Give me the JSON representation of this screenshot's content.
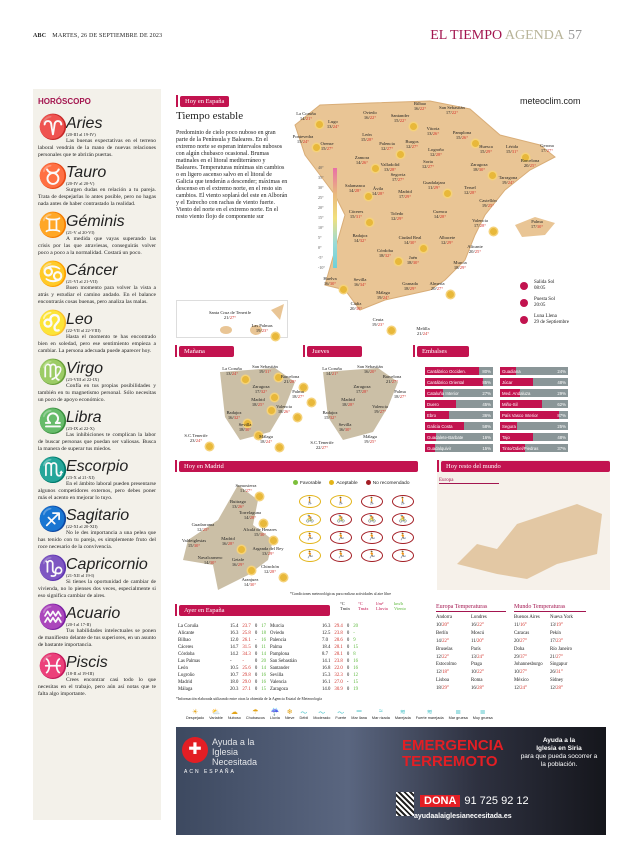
{
  "header": {
    "paper": "ABC",
    "date": "MARTES, 26 DE SEPTIEMBRE DE 2023",
    "section": "EL TIEMPO",
    "subsection": "AGENDA",
    "page": "57"
  },
  "horoscope": {
    "title": "HORÓSCOPO",
    "signs": [
      {
        "name": "Aries",
        "icon": "♈",
        "dates": "(20-III al 19-IV)",
        "text": "Las buenas expectativas en el terreno laboral vendrán de la mano de nuevas relaciones personales que te abrirán puertas."
      },
      {
        "name": "Tauro",
        "icon": "♉",
        "dates": "(20-IV al 20-V)",
        "text": "Surgen dudas en relación a tu pareja. Trata de despejarlas lo antes posible, pero no hagas nada antes de haber contrastado la realidad."
      },
      {
        "name": "Géminis",
        "icon": "♊",
        "dates": "(21-V al 20-VI)",
        "text": "A medida que vayas superando las crisis por las que atraviesas, conseguirás volver poco a poco a la normalidad. Costará un poco."
      },
      {
        "name": "Cáncer",
        "icon": "♋",
        "dates": "(21-VI al 21-VII)",
        "text": "Buen momento para volver la vista a atrás y estudiar el camino andado. En el balance encontrarás cosas buenas, pero analiza las malas."
      },
      {
        "name": "Leo",
        "icon": "♌",
        "dates": "(22-VII al 22-VIII)",
        "text": "Hasta el momento te has encontrado bien en soledad, pero ese sentimiento empieza a cambiar. La persona adecuada puede aparecer hoy."
      },
      {
        "name": "Virgo",
        "icon": "♍",
        "dates": "(23-VIII al 22-IX)",
        "text": "Confía en tus propias posibilidades y también en tu magnetismo personal. Sólo necesitas un poco de apoyo económico."
      },
      {
        "name": "Libra",
        "icon": "♎",
        "dates": "(23-IX al 22-X)",
        "text": "Las inhibiciones te complican la labor de buscar personas que puedan ser valiosas. Busca la manera de superar tus miedos."
      },
      {
        "name": "Escorpio",
        "icon": "♏",
        "dates": "(23-X al 21-XI)",
        "text": "En el ámbito laboral pueden presentarse algunos competidores externos, pero debes poner más el acento en mejorar lo tuyo."
      },
      {
        "name": "Sagitario",
        "icon": "♐",
        "dates": "(22-XI al 20-XII)",
        "text": "No le des importancia a una pelea que has tenido con tu pareja, es simplemente fruto del roce necesario de la convivencia."
      },
      {
        "name": "Capricornio",
        "icon": "♑",
        "dates": "(21-XII al 19-I)",
        "text": "Si tienes la oportunidad de cambiar de vivienda, no lo pienses dos veces, especialmente si eso significa cambiar de aires."
      },
      {
        "name": "Acuario",
        "icon": "♒",
        "dates": "(20-I al 17-II)",
        "text": "Tus habilidades intelectuales se ponen de manifiesto delante de tus superiores, en un asunto de bastante importancia."
      },
      {
        "name": "Piscis",
        "icon": "♓",
        "dates": "(18-II al 19-III)",
        "text": "Crees encontrar casi todo lo que necesitas en el trabajo, pero aún así notas que te falta algo importante."
      }
    ]
  },
  "spain": {
    "tag": "Hoy en España",
    "title": "Tiempo estable",
    "text": "Predominio de cielo poco nuboso en gran parte de la Península y Baleares. En el extremo norte se esperan intervalos nubosos con algún chubasco ocasional. Brumas matinales en el litoral mediterráneo y Baleares. Temperaturas mínimas sin cambios o en ligero ascenso salvo en el litoral de Galicia que tenderán a descender; máximas en descenso en el extremo norte, en el resto sin cambios. El viento soplará del este en Alborán y el Estrecho con rachas de viento fuerte. Viento del norte en el extremo norte. En el resto viento flojo de componente sur",
    "brand": "meteoclim.com",
    "scale": [
      "40°",
      "35°",
      "30°",
      "25°",
      "20°",
      "15°",
      "10°",
      "5°",
      "0°",
      "-5°",
      "-10°"
    ],
    "cities": [
      [
        "La Coruña",
        "14/",
        "21°"
      ],
      [
        "Lugo",
        "13/",
        "24°"
      ],
      [
        "Oviedo",
        "16/",
        "22°"
      ],
      [
        "Santander",
        "15/",
        "22°"
      ],
      [
        "Bilbao",
        "16/",
        "22°"
      ],
      [
        "San Sebastián",
        "17/",
        "22°"
      ],
      [
        "Pontevedra",
        "15/",
        "24°"
      ],
      [
        "Orense",
        "15/",
        "27°"
      ],
      [
        "León",
        "15/",
        "28°"
      ],
      [
        "Palencia",
        "12/",
        "27°"
      ],
      [
        "Burgos",
        "12/",
        "27°"
      ],
      [
        "Vitoria",
        "13/",
        "26°"
      ],
      [
        "Pamplona",
        "15/",
        "26°"
      ],
      [
        "Logroño",
        "12/",
        "28°"
      ],
      [
        "Huesca",
        "15/",
        "29°"
      ],
      [
        "Lérida",
        "15/",
        "31°"
      ],
      [
        "Gerona",
        "17/",
        "27°"
      ],
      [
        "Barcelona",
        "20/",
        "25°"
      ],
      [
        "Zamora",
        "14/",
        "26°"
      ],
      [
        "Valladolid",
        "13/",
        "28°"
      ],
      [
        "Soria",
        "12/",
        "27°"
      ],
      [
        "Zaragoza",
        "18/",
        "30°"
      ],
      [
        "Tarragona",
        "19/",
        "24°"
      ],
      [
        "Segovia",
        "17/",
        "27°"
      ],
      [
        "Salamanca",
        "14/",
        "28°"
      ],
      [
        "Ávila",
        "14/",
        "28°"
      ],
      [
        "Madrid",
        "17/",
        "29°"
      ],
      [
        "Guadalajara",
        "11/",
        "29°"
      ],
      [
        "Teruel",
        "12/",
        "28°"
      ],
      [
        "Castellón",
        "19/",
        "25°"
      ],
      [
        "Cáceres",
        "15/",
        "31°"
      ],
      [
        "Toledo",
        "12/",
        "29°"
      ],
      [
        "Cuenca",
        "14/",
        "28°"
      ],
      [
        "Valencia",
        "17/",
        "28°"
      ],
      [
        "Palma",
        "17/",
        "30°"
      ],
      [
        "Badajoz",
        "14/",
        "32°"
      ],
      [
        "Ciudad Real",
        "14/",
        "30°"
      ],
      [
        "Albacete",
        "12/",
        "29°"
      ],
      [
        "Alicante",
        "20/",
        "25°"
      ],
      [
        "Córdoba",
        "18/",
        "32°"
      ],
      [
        "Jaén",
        "18/",
        "30°"
      ],
      [
        "Murcia",
        "18/",
        "29°"
      ],
      [
        "Huelva",
        "16/",
        "30°"
      ],
      [
        "Sevilla",
        "16/",
        "34°"
      ],
      [
        "Granada",
        "18/",
        "29°"
      ],
      [
        "Almería",
        "20/",
        "27°"
      ],
      [
        "Málaga",
        "19/",
        "24°"
      ],
      [
        "Cádiz",
        "20/",
        "30°"
      ],
      [
        "Ceuta",
        "19/",
        "23°"
      ],
      [
        "Melilla",
        "21/",
        "24°"
      ],
      [
        "Santa Cruz de Tenerife",
        "21/",
        "27°"
      ],
      [
        "Las Palmas",
        "19/",
        "23°"
      ]
    ],
    "sun": [
      {
        "label": "Salida Sol",
        "value": "08:05"
      },
      {
        "label": "Puesta Sol",
        "value": "20:05"
      },
      {
        "label": "Luna Llena",
        "value": "29 de Septiembre"
      }
    ]
  },
  "manana": {
    "tag": "Mañana",
    "cities": [
      [
        "La Coruña",
        "13/",
        "24°"
      ],
      [
        "San Sebastián",
        "19/",
        "31°"
      ],
      [
        "Zaragoza",
        "17/",
        "32°"
      ],
      [
        "Barcelona",
        "21/",
        "28°"
      ],
      [
        "Madrid",
        "18/",
        "25°"
      ],
      [
        "Valencia",
        "18/",
        "26°"
      ],
      [
        "Palma",
        "18/",
        "27°"
      ],
      [
        "Badajoz",
        "16/",
        "32°"
      ],
      [
        "Sevilla",
        "18/",
        "30°"
      ],
      [
        "Málaga",
        "18/",
        "24°"
      ],
      [
        "S.C.Tenerife",
        "23/",
        "24°"
      ]
    ]
  },
  "jueves": {
    "tag": "Jueves",
    "cities": [
      [
        "La Coruña",
        "14/",
        "21°"
      ],
      [
        "San Sebastián",
        "16/",
        "20°"
      ],
      [
        "Zaragoza",
        "17/",
        "28°"
      ],
      [
        "Barcelona",
        "21/",
        "27°"
      ],
      [
        "Madrid",
        "18/",
        "28°"
      ],
      [
        "Valencia",
        "19/",
        "27°"
      ],
      [
        "Palma",
        "18/",
        "27°"
      ],
      [
        "Badajoz",
        "15/",
        "32°"
      ],
      [
        "Sevilla",
        "16/",
        "30°"
      ],
      [
        "Málaga",
        "19/",
        "25°"
      ],
      [
        "S.C.Tenerife",
        "22/",
        "27°"
      ]
    ]
  },
  "embalses": {
    "tag": "Embalses",
    "items": [
      [
        "Cantábrico Occiden.",
        80
      ],
      [
        "Cantábrico Oriental",
        85
      ],
      [
        "Cataluña Interior",
        27
      ],
      [
        "Duero",
        45
      ],
      [
        "Ebro",
        36
      ],
      [
        "Galicia Costa",
        58
      ],
      [
        "Guadalete-Barbate",
        16
      ],
      [
        "Guadalquivir",
        15
      ],
      [
        "Guadiana",
        24
      ],
      [
        "Júcar",
        48
      ],
      [
        "Med. Andaluza",
        29
      ],
      [
        "Miño-Sil",
        62
      ],
      [
        "País Vasco Interior",
        87
      ],
      [
        "Segura",
        25
      ],
      [
        "Tajo",
        48
      ],
      [
        "Tinto/Odiel/Piedras",
        37
      ]
    ]
  },
  "madrid": {
    "tag": "Hoy en Madrid",
    "legend": [
      "Favorable",
      "Aceptable",
      "No recomendado"
    ],
    "note": "*Condiciones meteorológicas para realizar actividades al aire libre",
    "cities": [
      [
        "Somosierra",
        "11/",
        "27°"
      ],
      [
        "Buitrago",
        "13/",
        "26°"
      ],
      [
        "Torrelaguna",
        "14/",
        "28°"
      ],
      [
        "Guadarrama",
        "12/",
        "25°"
      ],
      [
        "Alcalá de Henares",
        "15/",
        "30°"
      ],
      [
        "Valdeiglesias",
        "15/",
        "30°"
      ],
      [
        "Madrid",
        "16/",
        "28°"
      ],
      [
        "Arganda del Rey",
        "13/",
        "29°"
      ],
      [
        "Getafe",
        "16/",
        "29°"
      ],
      [
        "Navalcarnero",
        "14/",
        "30°"
      ],
      [
        "Chinchón",
        "12/",
        "28°"
      ],
      [
        "Aranjuez",
        "14/",
        "30°"
      ]
    ],
    "activities": [
      [
        "aceptable",
        "aceptable",
        "no",
        "no"
      ],
      [
        "aceptable",
        "no",
        "no",
        "no"
      ],
      [
        "aceptable",
        "no",
        "no",
        "no"
      ],
      [
        "aceptable",
        "no",
        "no",
        "no"
      ]
    ]
  },
  "world": {
    "tag": "Hoy resto del mundo",
    "label": "Europa"
  },
  "ayer": {
    "tag": "Ayer en España",
    "headers": [
      "°C Tmín",
      "°C Tmáx",
      "l/m² Lluvia",
      "km/h Viento"
    ],
    "left": [
      [
        "La Coruña",
        "15.4",
        "23.7",
        "0",
        "17"
      ],
      [
        "Alicante",
        "16.3",
        "25.8",
        "0",
        "18"
      ],
      [
        "Bilbao",
        "12.0",
        "26.1",
        "-",
        "16"
      ],
      [
        "Cáceres",
        "14.7",
        "31.5",
        "0",
        "11"
      ],
      [
        "Córdoba",
        "14.2",
        "34.3",
        "0",
        "14"
      ],
      [
        "Las Palmas",
        "-",
        "-",
        "0",
        "20"
      ],
      [
        "León",
        "10.5",
        "25.6",
        "0",
        "14"
      ],
      [
        "Logroño",
        "10.7",
        "29.8",
        "0",
        "16"
      ],
      [
        "Madrid",
        "18.0",
        "29.0",
        "0",
        "16"
      ],
      [
        "Málaga",
        "20.3",
        "27.1",
        "0",
        "15"
      ]
    ],
    "right": [
      [
        "Murcia",
        "16.3",
        "29.4",
        "0",
        "20"
      ],
      [
        "Oviedo",
        "12.5",
        "23.8",
        "0",
        "-"
      ],
      [
        "Palencia",
        "7.0",
        "28.6",
        "0",
        "9"
      ],
      [
        "Palma",
        "18.4",
        "28.1",
        "0",
        "15"
      ],
      [
        "Pamplona",
        "8.7",
        "28.1",
        "0",
        "8"
      ],
      [
        "San Sebastián",
        "14.1",
        "23.8",
        "0",
        "16"
      ],
      [
        "Santander",
        "16.8",
        "22.0",
        "0",
        "16"
      ],
      [
        "Sevilla",
        "15.3",
        "32.3",
        "0",
        "12"
      ],
      [
        "Valencia",
        "16.1",
        "27.0",
        "-",
        "15"
      ],
      [
        "Zaragoza",
        "14.0",
        "30.9",
        "0",
        "19"
      ]
    ],
    "note": "*Información elaborada utilizando entre otras la obtenida de la Agencia Estatal de Meteorología"
  },
  "europa": {
    "title": "Europa Temperaturas",
    "cities": [
      [
        "Andorra",
        "10/",
        "20°"
      ],
      [
        "Londres",
        "16/",
        "22°"
      ],
      [
        "Berlín",
        "14/",
        "22°"
      ],
      [
        "Moscú",
        "11/",
        "20°"
      ],
      [
        "Bruselas",
        "12/",
        "22°"
      ],
      [
        "París",
        "13/",
        "24°"
      ],
      [
        "Estocolmo",
        "12/",
        "18°"
      ],
      [
        "Praga",
        "10/",
        "22°"
      ],
      [
        "Lisboa",
        "18/",
        "29°"
      ],
      [
        "Roma",
        "16/",
        "28°"
      ]
    ]
  },
  "mundo": {
    "title": "Mundo Temperaturas",
    "cities": [
      [
        "Buenos Aires",
        "11/",
        "16°"
      ],
      [
        "Nueva York",
        "13/",
        "19°"
      ],
      [
        "Caracas",
        "20/",
        "27°"
      ],
      [
        "Pekín",
        "17/",
        "23°"
      ],
      [
        "Doha",
        "29/",
        "37°"
      ],
      [
        "Río Janeiro",
        "21/",
        "27°"
      ],
      [
        "Johannesburgo",
        "10/",
        "27°"
      ],
      [
        "Singapur",
        "26/",
        "31°"
      ],
      [
        "México",
        "12/",
        "24°"
      ],
      [
        "Sídney",
        "12/",
        "28°"
      ]
    ]
  },
  "legend": [
    [
      "Despejado",
      "☀"
    ],
    [
      "Variable",
      "⛅"
    ],
    [
      "Nuboso",
      "☁"
    ],
    [
      "Chubascos",
      "☂"
    ],
    [
      "Lluvia",
      "☔"
    ],
    [
      "Nieve",
      "❄"
    ],
    [
      "Débil",
      "～"
    ],
    [
      "Moderado",
      "～"
    ],
    [
      "Fuerte",
      "～"
    ],
    [
      "Mar llana",
      "═"
    ],
    [
      "Mar rizada",
      "≈"
    ],
    [
      "Marejada",
      "≋"
    ],
    [
      "Fuerte marejada",
      "≋"
    ],
    [
      "Mar gruesa",
      "≣"
    ],
    [
      "Muy gruesa",
      "≣"
    ]
  ],
  "ad": {
    "org": "Ayuda a la Iglesia Necesitada",
    "acn": "ACN ESPAÑA",
    "headline1": "EMERGENCIA",
    "headline2": "TERREMOTO",
    "help1": "Ayuda a la",
    "help2": "Iglesia en Siria",
    "help3": "para que pueda socorrer a la población.",
    "dona": "DONA",
    "phone": "91 725 92 12",
    "url": "ayudaalaiglesianecesitada.es",
    "logo": "ACN cross"
  },
  "colors": {
    "accent": "#c2134f",
    "max_temp": "#d2312a",
    "gauge_gray": "#8a9698",
    "zodiac": "#4a6fc0"
  }
}
